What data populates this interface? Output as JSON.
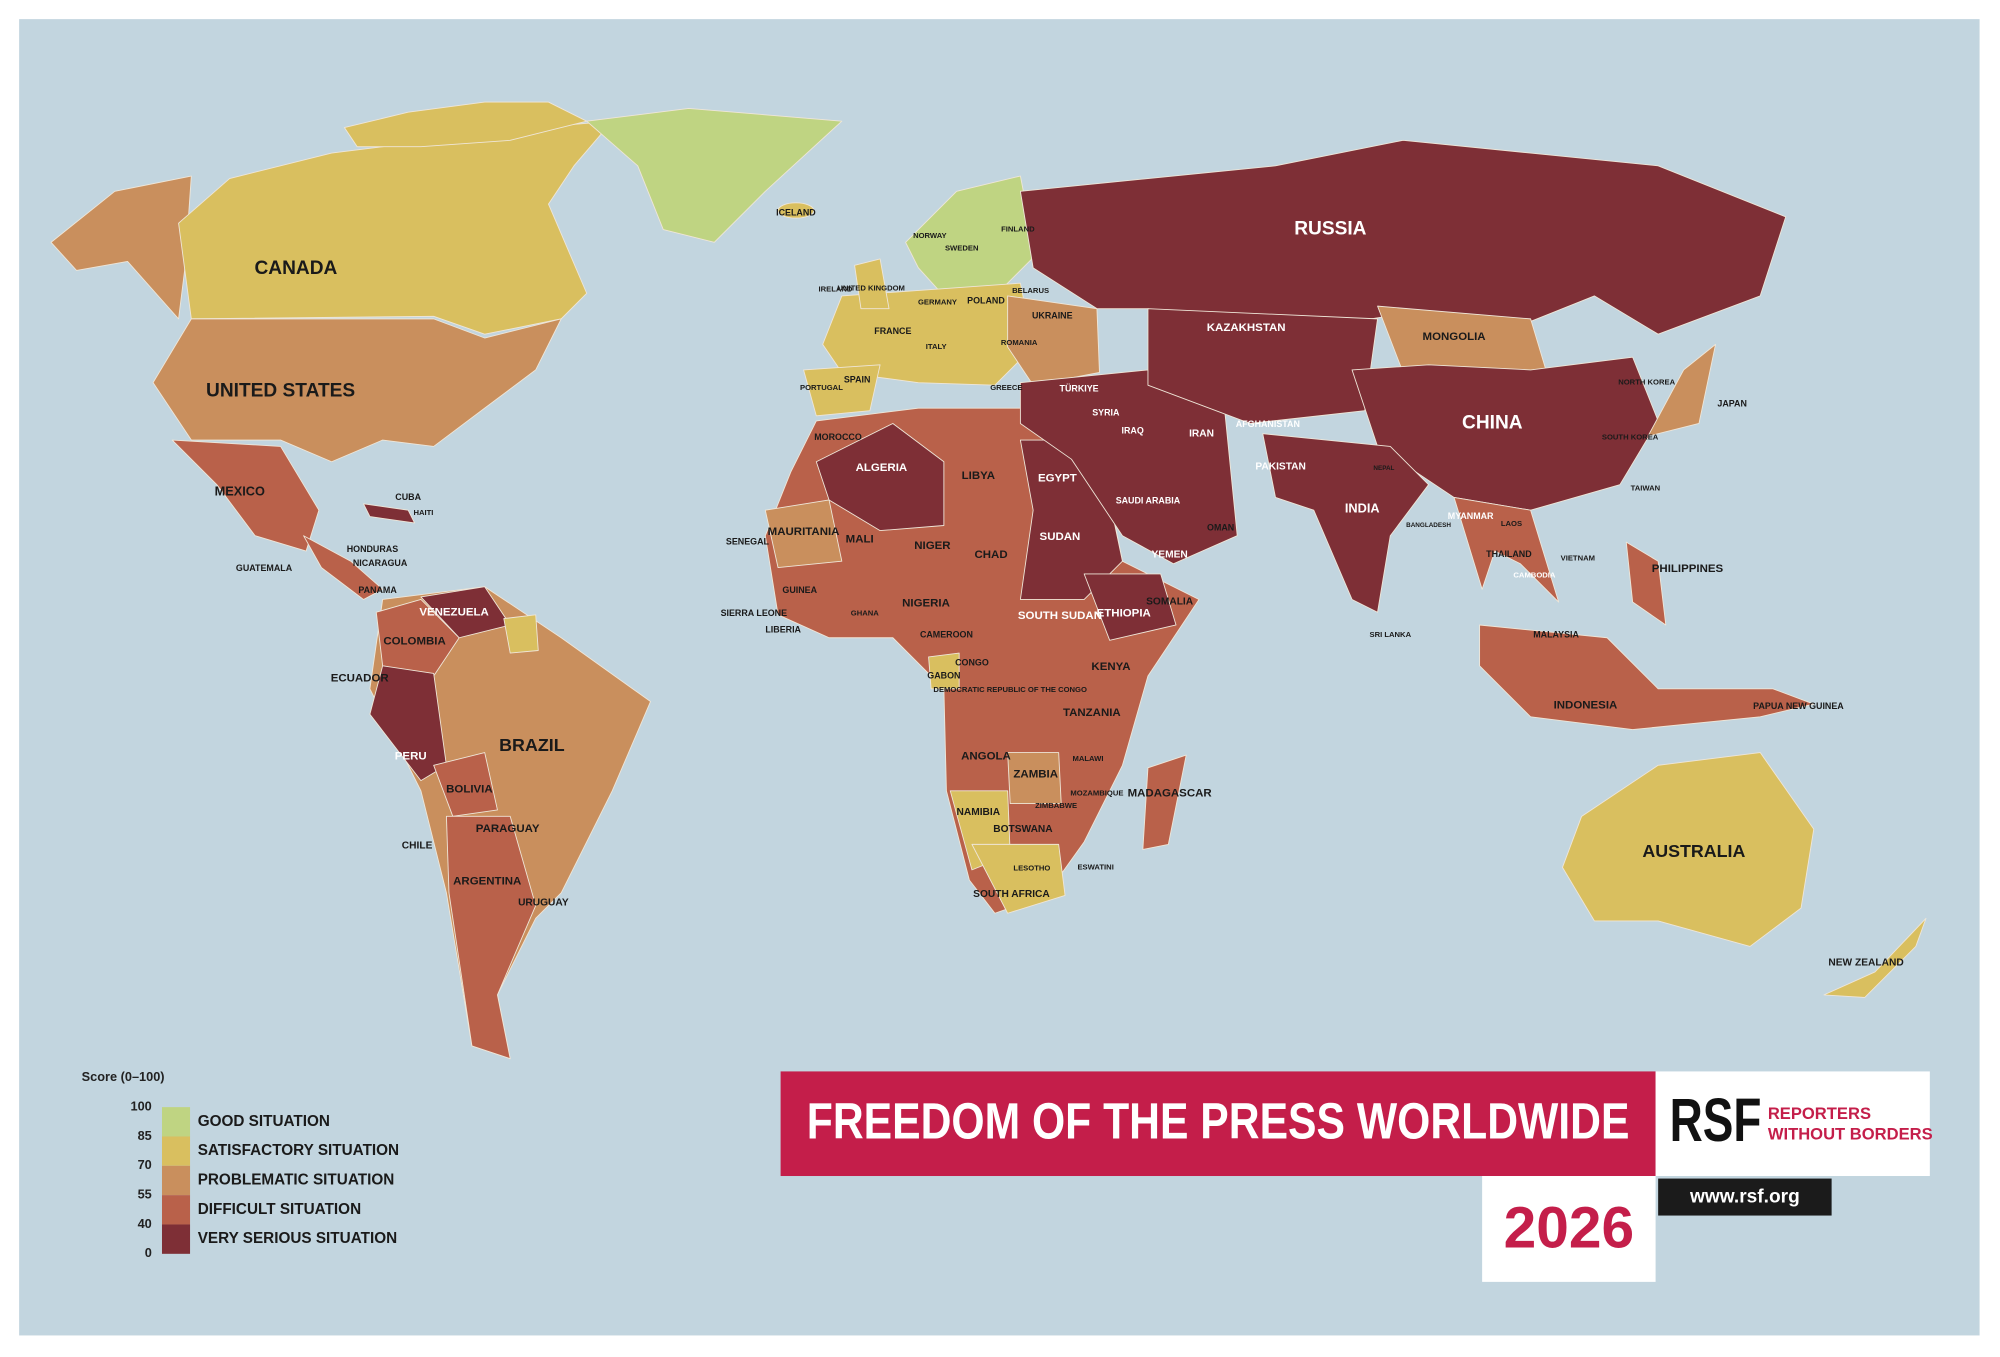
{
  "legend": {
    "title": "Score (0–100)",
    "ticks": [
      100,
      85,
      70,
      55,
      40,
      0
    ],
    "levels": [
      {
        "label": "GOOD SITUATION",
        "color": "#bfd482"
      },
      {
        "label": "SATISFACTORY SITUATION",
        "color": "#d9bf5f"
      },
      {
        "label": "PROBLEMATIC SITUATION",
        "color": "#c98f5d"
      },
      {
        "label": "DIFFICULT SITUATION",
        "color": "#b9614a"
      },
      {
        "label": "VERY SERIOUS SITUATION",
        "color": "#7e2f36"
      }
    ]
  },
  "banner": {
    "title": "FREEDOM OF THE PRESS WORLDWIDE",
    "year": "2026",
    "logo": "RSF",
    "brand": [
      "REPORTERS",
      "WITHOUT BORDERS"
    ],
    "url": "www.rsf.org"
  },
  "countries": [
    "RUSSIA",
    "CHINA",
    "CANADA",
    "UNITED STATES",
    "BRAZIL",
    "AUSTRALIA",
    "MEXICO",
    "ARGENTINA",
    "BOLIVIA",
    "PERU",
    "COLOMBIA",
    "VENEZUELA",
    "ECUADOR",
    "CHILE",
    "PARAGUAY",
    "URUGUAY",
    "NEW ZEALAND",
    "INDONESIA",
    "INDIA",
    "KAZAKHSTAN",
    "MONGOLIA",
    "JAPAN",
    "PHILIPPINES",
    "IRAN",
    "AFGHANISTAN",
    "PAKISTAN",
    "SAUDI ARABIA",
    "TÜRKIYE",
    "EGYPT",
    "LIBYA",
    "ALGERIA",
    "MOROCCO",
    "SUDAN",
    "CHAD",
    "NIGER",
    "MALI",
    "MAURITANIA",
    "NIGERIA",
    "ETHIOPIA",
    "SOUTH SUDAN",
    "KENYA",
    "TANZANIA",
    "ANGOLA",
    "ZAMBIA",
    "NAMIBIA",
    "BOTSWANA",
    "SOUTH AFRICA",
    "MADAGASCAR",
    "DEMOCRATIC REPUBLIC OF THE CONGO",
    "UKRAINE",
    "POLAND",
    "GERMANY",
    "FRANCE",
    "SPAIN",
    "UNITED KINGDOM",
    "NORWAY",
    "SWEDEN",
    "FINLAND",
    "ICELAND",
    "OMAN",
    "YEMEN",
    "MYANMAR",
    "THAILAND",
    "VIETNAM",
    "MALAYSIA",
    "PAPUA NEW GUINEA",
    "SOMALIA",
    "CUBA",
    "HAITI",
    "GUATEMALA",
    "HONDURAS",
    "NICARAGUA",
    "PANAMA",
    "IRAQ",
    "SYRIA",
    "NORTH KOREA",
    "SOUTH KOREA",
    "TAIWAN",
    "SRI LANKA",
    "BANGLADESH",
    "NEPAL",
    "LAOS",
    "CAMBODIA",
    "CAMEROON",
    "CONGO",
    "GABON",
    "GHANA",
    "SENEGAL",
    "GUINEA",
    "LIBERIA",
    "SIERRA LEONE",
    "MOZAMBIQUE",
    "ZIMBABWE",
    "MALAWI",
    "ESWATINI",
    "LESOTHO",
    "ITALY",
    "GREECE",
    "ROMANIA",
    "BELARUS",
    "PORTUGAL",
    "IRELAND"
  ]
}
